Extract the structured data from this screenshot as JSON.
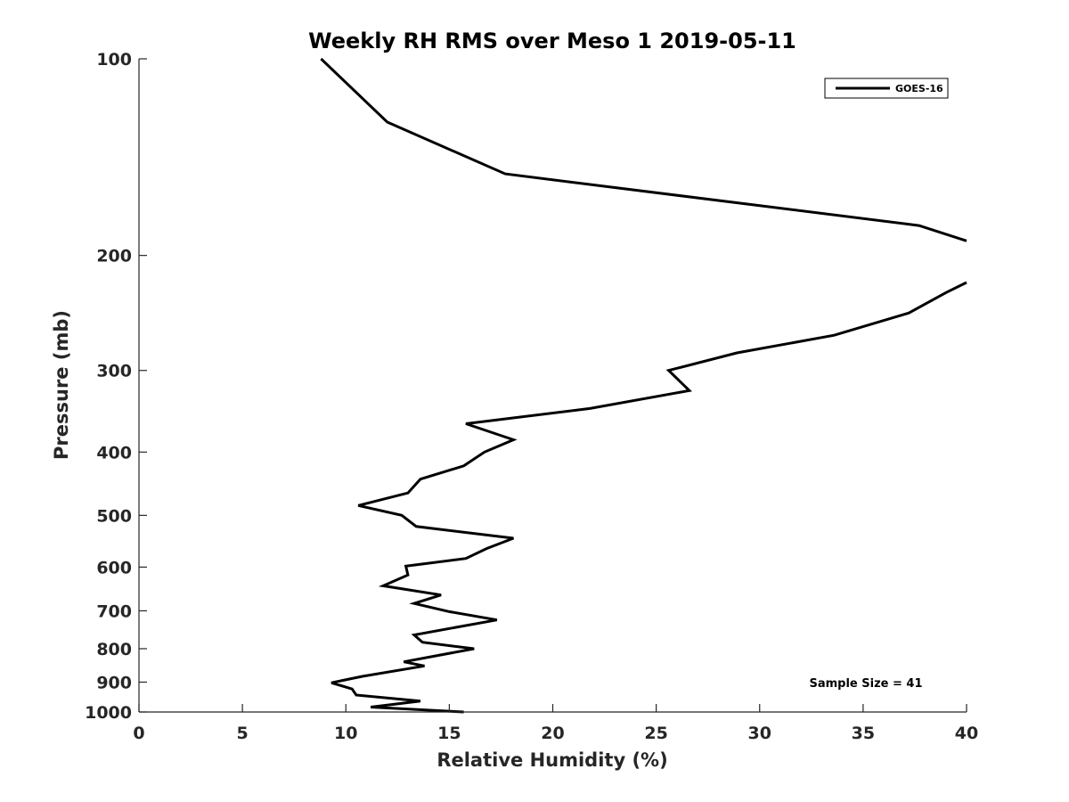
{
  "chart_data": {
    "type": "line",
    "title": "Weekly RH RMS over Meso 1 2019-05-11",
    "xlabel": "Relative Humidity (%)",
    "ylabel": "Pressure (mb)",
    "xlim": [
      0,
      40
    ],
    "ylim": [
      100,
      1000
    ],
    "yscale": "log",
    "yaxis_reversed": true,
    "grid": false,
    "legend_position": "top-right",
    "x_ticks": [
      0,
      5,
      10,
      15,
      20,
      25,
      30,
      35,
      40
    ],
    "x_tick_labels": [
      "0",
      "5",
      "10",
      "15",
      "20",
      "25",
      "30",
      "35",
      "40"
    ],
    "y_ticks": [
      100,
      200,
      300,
      400,
      500,
      600,
      700,
      800,
      900,
      1000
    ],
    "y_tick_labels": [
      "100",
      "200",
      "300",
      "400",
      "500",
      "600",
      "700",
      "800",
      "900",
      "1000"
    ],
    "annotation": "Sample Size = 41",
    "series": [
      {
        "name": "GOES-16",
        "color": "#000000",
        "segments": [
          [
            [
              8.8,
              100
            ],
            [
              12.0,
              125
            ],
            [
              17.7,
              150
            ],
            [
              37.7,
              180
            ],
            [
              40.0,
              190
            ]
          ],
          [
            [
              40.0,
              220
            ],
            [
              39.0,
              228
            ],
            [
              37.2,
              245
            ],
            [
              33.6,
              265
            ],
            [
              28.9,
              282
            ],
            [
              25.6,
              300
            ],
            [
              26.6,
              322
            ],
            [
              21.8,
              343
            ],
            [
              15.8,
              362
            ],
            [
              18.1,
              383
            ],
            [
              16.7,
              400
            ],
            [
              15.7,
              420
            ],
            [
              13.6,
              440
            ],
            [
              13.0,
              462
            ],
            [
              10.6,
              483
            ],
            [
              12.7,
              500
            ],
            [
              13.4,
              520
            ],
            [
              18.1,
              542
            ],
            [
              16.8,
              562
            ],
            [
              15.8,
              582
            ],
            [
              12.9,
              598
            ],
            [
              13.0,
              617
            ],
            [
              11.8,
              641
            ],
            [
              14.6,
              662
            ],
            [
              13.3,
              682
            ],
            [
              15.0,
              702
            ],
            [
              17.3,
              723
            ],
            [
              13.3,
              762
            ],
            [
              13.7,
              782
            ],
            [
              16.2,
              800
            ],
            [
              14.2,
              822
            ],
            [
              12.8,
              838
            ],
            [
              13.8,
              850
            ],
            [
              10.8,
              882
            ],
            [
              9.3,
              902
            ],
            [
              10.3,
              922
            ],
            [
              10.5,
              942
            ],
            [
              13.6,
              962
            ],
            [
              11.2,
              983
            ],
            [
              15.7,
              1000
            ]
          ]
        ]
      }
    ]
  }
}
